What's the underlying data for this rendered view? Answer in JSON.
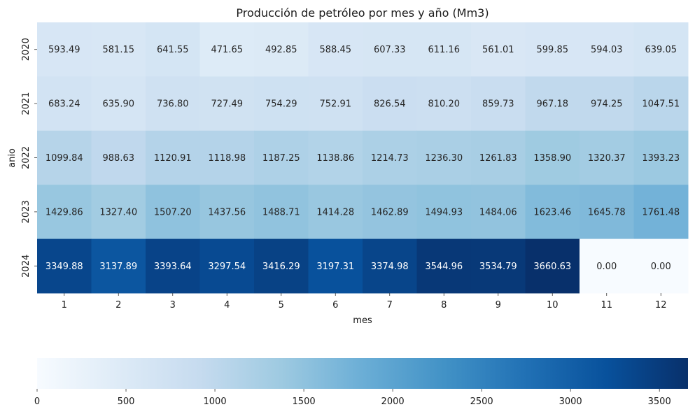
{
  "chart_data": {
    "type": "heatmap",
    "title": "Producción de petróleo por mes y año (Mm3)",
    "xlabel": "mes",
    "ylabel": "anio",
    "x_categories": [
      "1",
      "2",
      "3",
      "4",
      "5",
      "6",
      "7",
      "8",
      "9",
      "10",
      "11",
      "12"
    ],
    "y_categories": [
      "2020",
      "2021",
      "2022",
      "2023",
      "2024"
    ],
    "values": [
      [
        593.49,
        581.15,
        641.55,
        471.65,
        492.85,
        588.45,
        607.33,
        611.16,
        561.01,
        599.85,
        594.03,
        639.05
      ],
      [
        683.24,
        635.9,
        736.8,
        727.49,
        754.29,
        752.91,
        826.54,
        810.2,
        859.73,
        967.18,
        974.25,
        1047.51
      ],
      [
        1099.84,
        988.63,
        1120.91,
        1118.98,
        1187.25,
        1138.86,
        1214.73,
        1236.3,
        1261.83,
        1358.9,
        1320.37,
        1393.23
      ],
      [
        1429.86,
        1327.4,
        1507.2,
        1437.56,
        1488.71,
        1414.28,
        1462.89,
        1494.93,
        1484.06,
        1623.46,
        1645.78,
        1761.48
      ],
      [
        3349.88,
        3137.89,
        3393.64,
        3297.54,
        3416.29,
        3197.31,
        3374.98,
        3544.96,
        3534.79,
        3660.63,
        0.0,
        0.0
      ]
    ],
    "value_format": "0.00",
    "colormap": "Blues",
    "colorbar": {
      "orientation": "horizontal",
      "position": "bottom",
      "range": [
        0,
        3660.63
      ],
      "ticks": [
        "0",
        "500",
        "1000",
        "1500",
        "2000",
        "2500",
        "3000",
        "3500"
      ]
    }
  }
}
